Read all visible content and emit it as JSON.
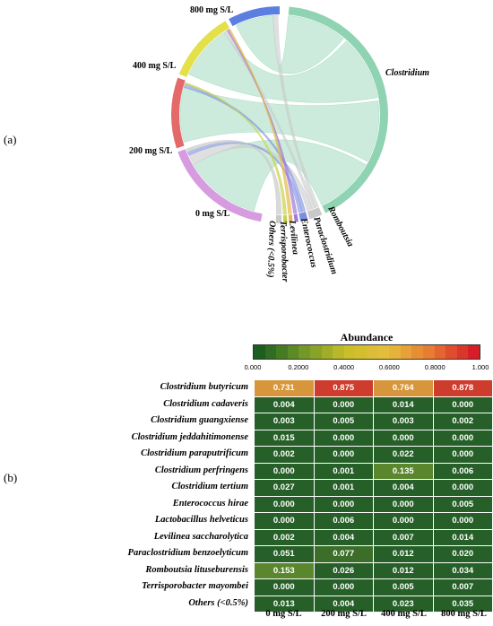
{
  "panel_labels": {
    "a": "(a)",
    "b": "(b)"
  },
  "chord": {
    "groups": [
      {
        "name": "800 mg S/L",
        "color": "#5b7fe0"
      },
      {
        "name": "400 mg S/L",
        "color": "#e4e04a"
      },
      {
        "name": "200 mg S/L",
        "color": "#e46a6a"
      },
      {
        "name": "0 mg S/L",
        "color": "#d79be0"
      },
      {
        "name": "Others (<0.5%)",
        "color": "#c9c9c9"
      },
      {
        "name": "Terrisporobacter",
        "color": "#c7d44a"
      },
      {
        "name": "Levilinea",
        "color": "#e6b84a"
      },
      {
        "name": "Enterococcus",
        "color": "#a07ad6"
      },
      {
        "name": "Paraclostridium",
        "color": "#7a8fe0"
      },
      {
        "name": "Romboutsia",
        "color": "#c9c9c9"
      },
      {
        "name": "Clostridium",
        "color": "#8fd3b3"
      }
    ]
  },
  "heatmap": {
    "title": "Abundance",
    "scale_ticks": [
      "0.000",
      "0.2000",
      "0.4000",
      "0.6000",
      "0.8000",
      "1.000"
    ],
    "columns": [
      "0 mg S/L",
      "200 mg S/L",
      "400 mg S/L",
      "800 mg S/L"
    ],
    "rows": [
      {
        "name": "Clostridium butyricum",
        "values": [
          "0.731",
          "0.875",
          "0.764",
          "0.878"
        ]
      },
      {
        "name": "Clostridium cadaveris",
        "values": [
          "0.004",
          "0.000",
          "0.014",
          "0.000"
        ]
      },
      {
        "name": "Clostridium guangxiense",
        "values": [
          "0.003",
          "0.005",
          "0.003",
          "0.002"
        ]
      },
      {
        "name": "Clostridium jeddahitimonense",
        "values": [
          "0.015",
          "0.000",
          "0.000",
          "0.000"
        ]
      },
      {
        "name": "Clostridium paraputrificum",
        "values": [
          "0.002",
          "0.000",
          "0.022",
          "0.000"
        ]
      },
      {
        "name": "Clostridium perfringens",
        "values": [
          "0.000",
          "0.001",
          "0.135",
          "0.006"
        ]
      },
      {
        "name": "Clostridium tertium",
        "values": [
          "0.027",
          "0.001",
          "0.004",
          "0.000"
        ]
      },
      {
        "name": "Enterococcus hirae",
        "values": [
          "0.000",
          "0.000",
          "0.000",
          "0.005"
        ]
      },
      {
        "name": "Lactobacillus helveticus",
        "values": [
          "0.000",
          "0.006",
          "0.000",
          "0.000"
        ]
      },
      {
        "name": "Levilinea saccharolytica",
        "values": [
          "0.002",
          "0.004",
          "0.007",
          "0.014"
        ]
      },
      {
        "name": "Paraclostridium benzoelyticum",
        "values": [
          "0.051",
          "0.077",
          "0.012",
          "0.020"
        ]
      },
      {
        "name": "Romboutsia lituseburensis",
        "values": [
          "0.153",
          "0.026",
          "0.012",
          "0.034"
        ]
      },
      {
        "name": "Terrisporobacter mayombei",
        "values": [
          "0.000",
          "0.000",
          "0.005",
          "0.007"
        ]
      },
      {
        "name": "Others (<0.5%)",
        "values": [
          "0.013",
          "0.004",
          "0.023",
          "0.035"
        ]
      }
    ]
  }
}
